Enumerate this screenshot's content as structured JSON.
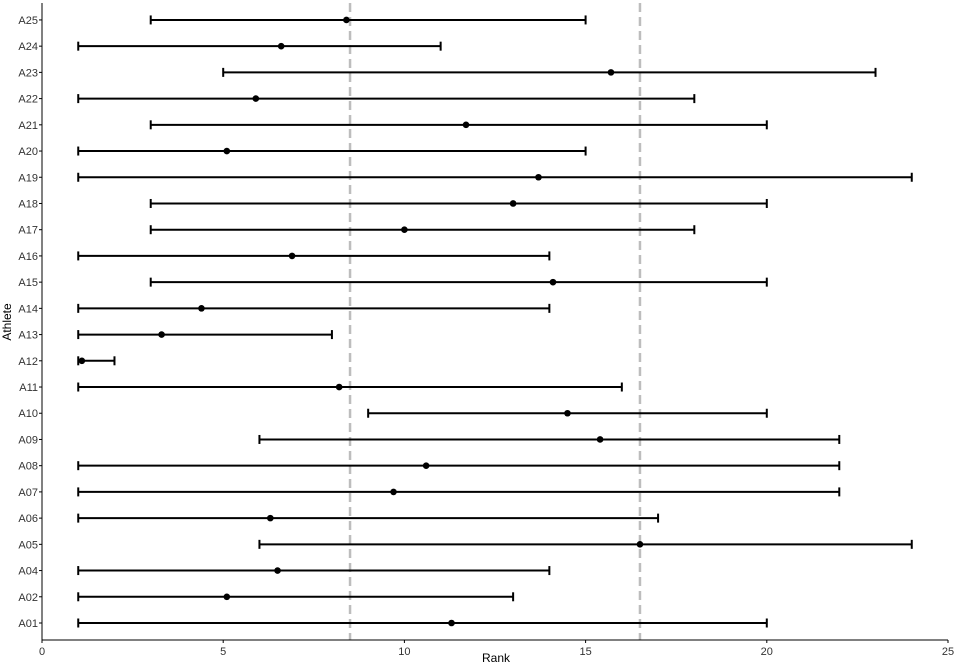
{
  "chart_data": {
    "type": "scatter",
    "subtype": "interval-dot-plot",
    "xlabel": "Rank",
    "ylabel": "Athlete",
    "xlim": [
      0,
      25
    ],
    "x_ticks": [
      0,
      5,
      10,
      15,
      20,
      25
    ],
    "grid": false,
    "legend": "none",
    "reference_lines": [
      8.5,
      16.5
    ],
    "colors": {
      "interval": "#000000",
      "point": "#000000",
      "reference_line": "#bdbdbd",
      "axis": "#000000"
    },
    "athletes": [
      {
        "name": "A01",
        "low": 1,
        "mean": 11.3,
        "high": 20
      },
      {
        "name": "A02",
        "low": 1,
        "mean": 5.1,
        "high": 13
      },
      {
        "name": "A04",
        "low": 1,
        "mean": 6.5,
        "high": 14
      },
      {
        "name": "A05",
        "low": 6,
        "mean": 16.5,
        "high": 24
      },
      {
        "name": "A06",
        "low": 1,
        "mean": 6.3,
        "high": 17
      },
      {
        "name": "A07",
        "low": 1,
        "mean": 9.7,
        "high": 22
      },
      {
        "name": "A08",
        "low": 1,
        "mean": 10.6,
        "high": 22
      },
      {
        "name": "A09",
        "low": 6,
        "mean": 15.4,
        "high": 22
      },
      {
        "name": "A10",
        "low": 9,
        "mean": 14.5,
        "high": 20
      },
      {
        "name": "A11",
        "low": 1,
        "mean": 8.2,
        "high": 16
      },
      {
        "name": "A12",
        "low": 1,
        "mean": 1.1,
        "high": 2
      },
      {
        "name": "A13",
        "low": 1,
        "mean": 3.3,
        "high": 8
      },
      {
        "name": "A14",
        "low": 1,
        "mean": 4.4,
        "high": 14
      },
      {
        "name": "A15",
        "low": 3,
        "mean": 14.1,
        "high": 20
      },
      {
        "name": "A16",
        "low": 1,
        "mean": 6.9,
        "high": 14
      },
      {
        "name": "A17",
        "low": 3,
        "mean": 10.0,
        "high": 18
      },
      {
        "name": "A18",
        "low": 3,
        "mean": 13.0,
        "high": 20
      },
      {
        "name": "A19",
        "low": 1,
        "mean": 13.7,
        "high": 24
      },
      {
        "name": "A20",
        "low": 1,
        "mean": 5.1,
        "high": 15
      },
      {
        "name": "A21",
        "low": 3,
        "mean": 11.7,
        "high": 20
      },
      {
        "name": "A22",
        "low": 1,
        "mean": 5.9,
        "high": 18
      },
      {
        "name": "A23",
        "low": 5,
        "mean": 15.7,
        "high": 23
      },
      {
        "name": "A24",
        "low": 1,
        "mean": 6.6,
        "high": 11
      },
      {
        "name": "A25",
        "low": 3,
        "mean": 8.4,
        "high": 15
      }
    ]
  }
}
